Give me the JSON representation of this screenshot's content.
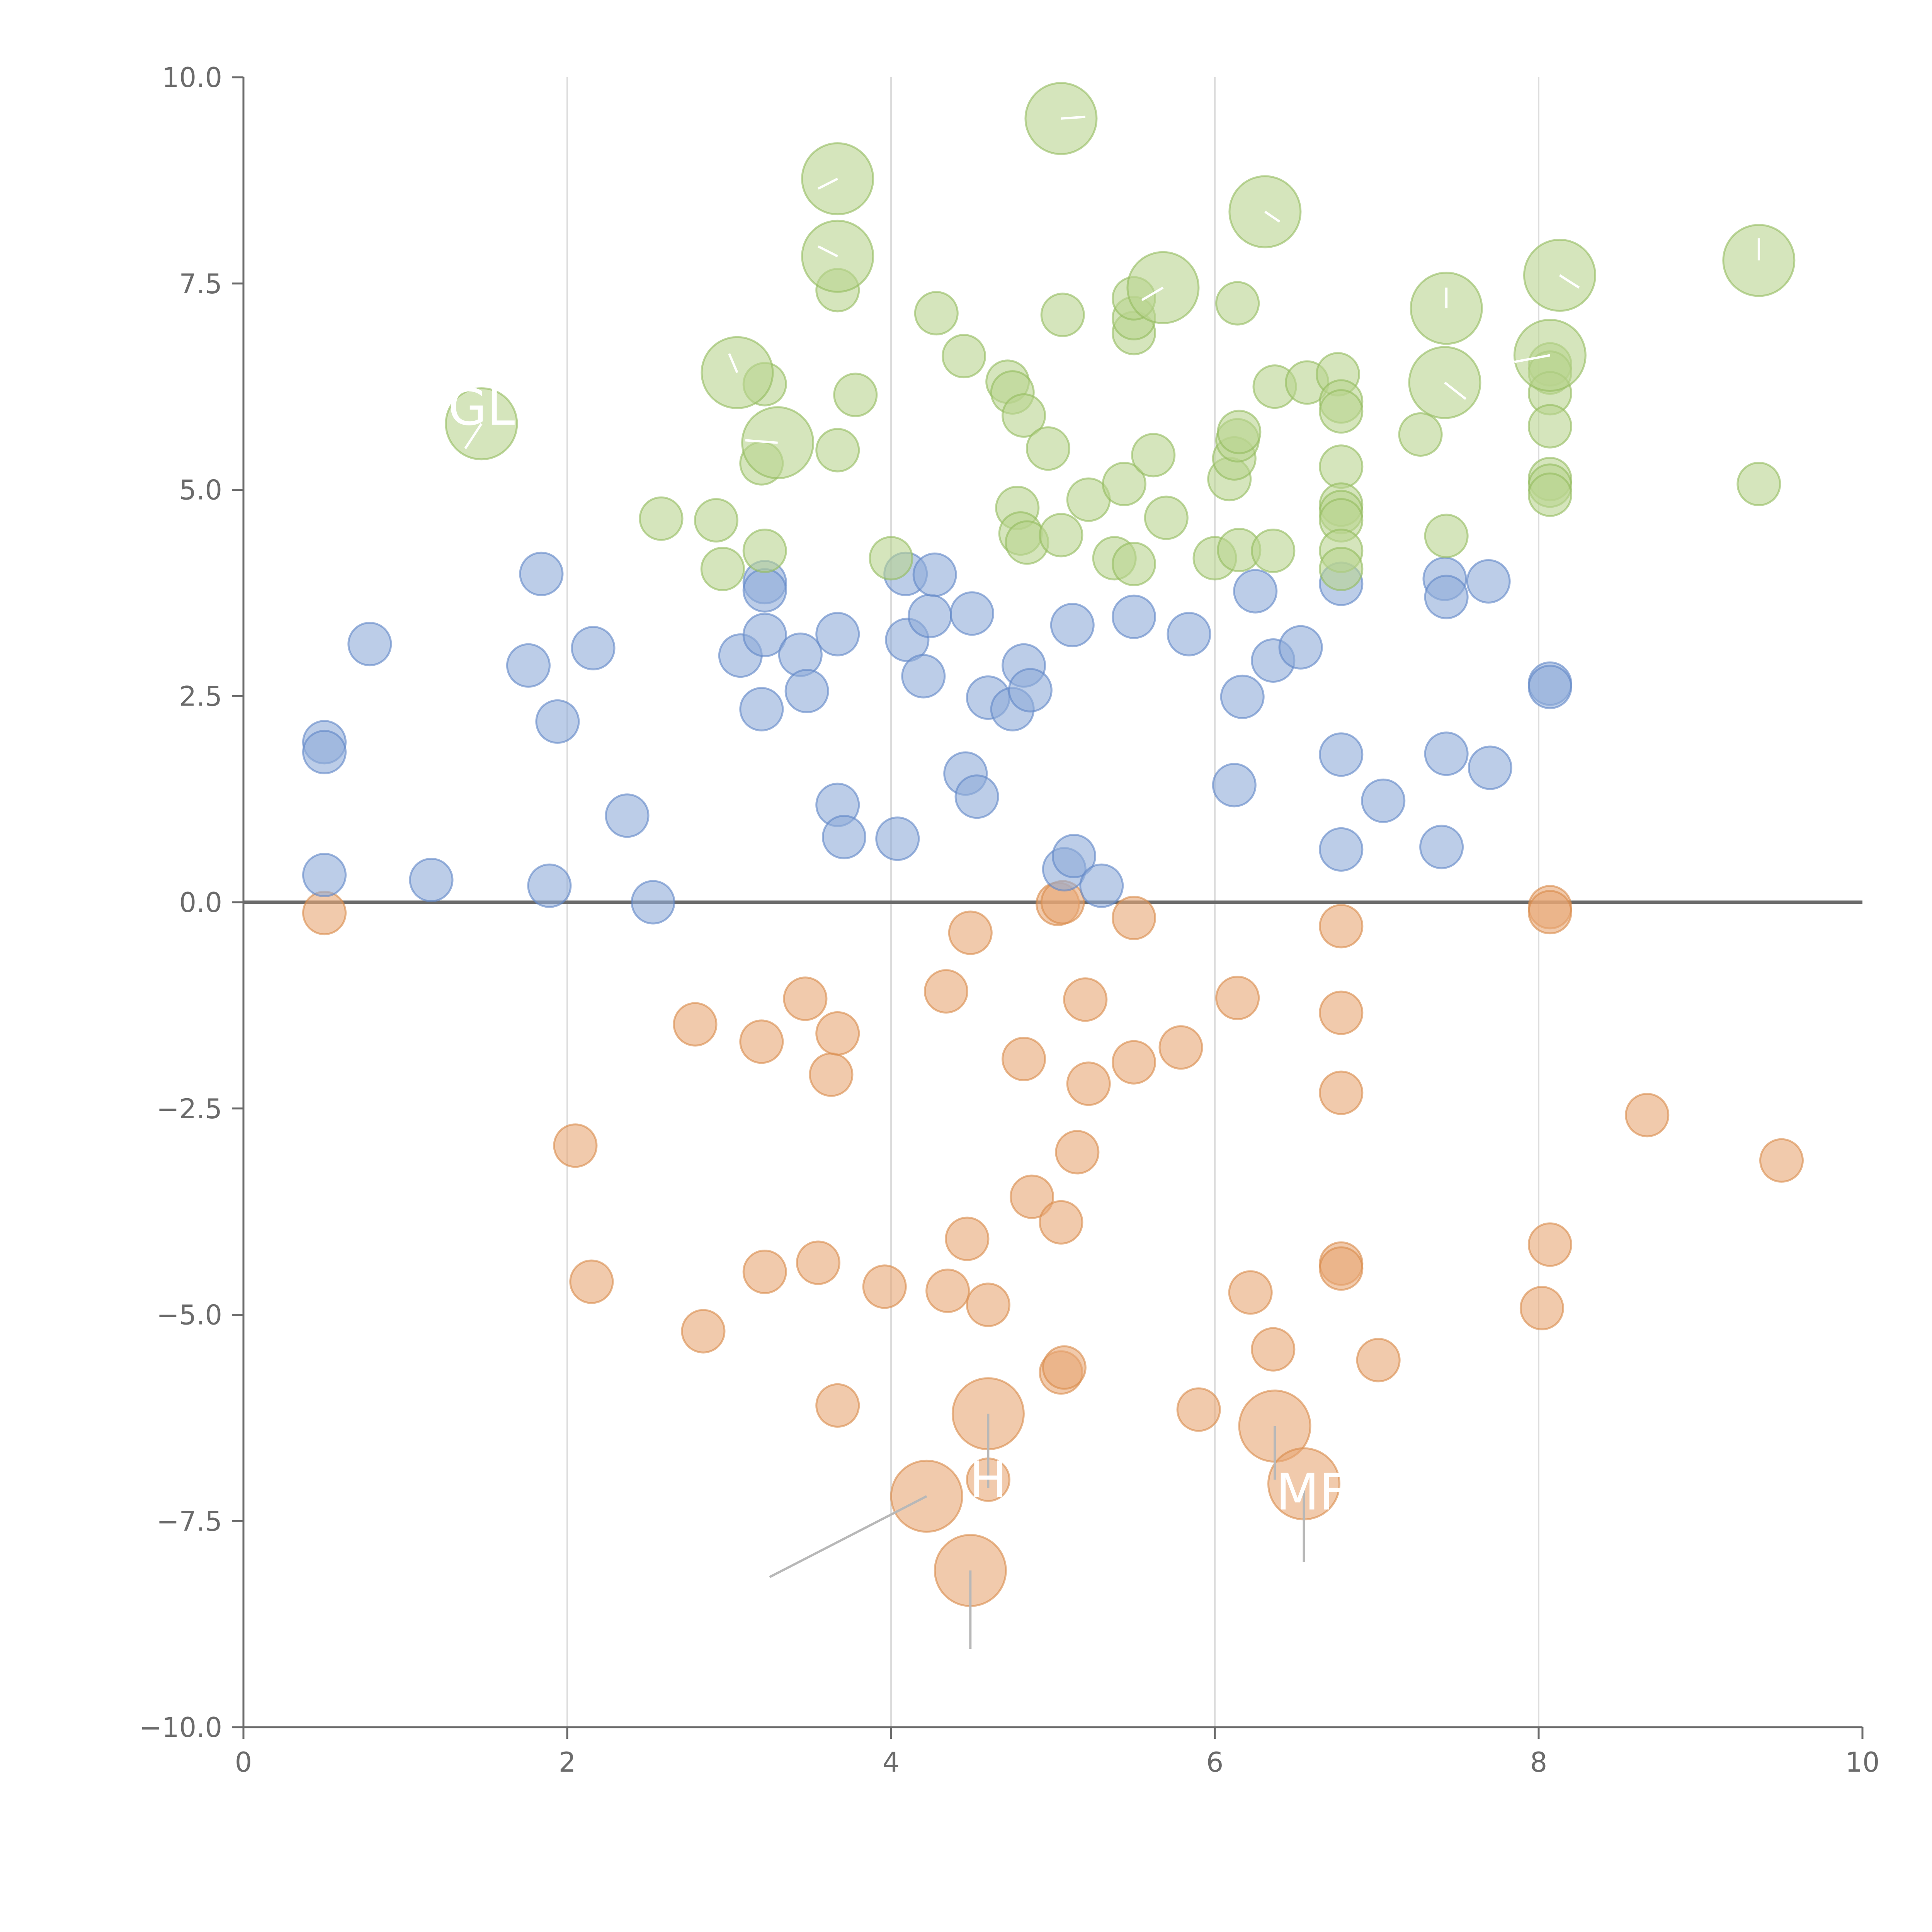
{
  "chart_data": {
    "type": "scatter",
    "title": "",
    "xlabel": "",
    "ylabel": "",
    "xlim": [
      0,
      10
    ],
    "ylim": [
      -10,
      10
    ],
    "x_ticks": [
      "0",
      "2",
      "4",
      "6",
      "8",
      "10"
    ],
    "y_ticks": [
      "−10.0",
      "−7.5",
      "−5.0",
      "−2.5",
      "0.0",
      "2.5",
      "5.0",
      "7.5",
      "10.0"
    ],
    "grid": "vertical",
    "zero_line": true,
    "colors": {
      "low": "#e8a775",
      "mid": "#8fabd8",
      "high": "#b9d48f"
    },
    "series": [
      {
        "color": "low",
        "points": [
          [
            0.5,
            -0.13
          ],
          [
            2.05,
            -2.95
          ],
          [
            2.15,
            -4.6
          ],
          [
            2.79,
            -1.48
          ],
          [
            2.84,
            -5.2
          ],
          [
            3.2,
            -1.69
          ],
          [
            3.22,
            -4.48
          ],
          [
            3.47,
            -1.17
          ],
          [
            3.55,
            -4.37
          ],
          [
            3.63,
            -2.09
          ],
          [
            3.67,
            -1.59
          ],
          [
            3.67,
            -6.1
          ],
          [
            3.96,
            -4.66
          ],
          [
            4.34,
            -1.08
          ],
          [
            4.35,
            -4.71
          ],
          [
            4.47,
            -4.08
          ],
          [
            4.49,
            -0.37
          ],
          [
            4.6,
            -4.88
          ],
          [
            4.6,
            -7.0
          ],
          [
            4.82,
            -1.9
          ],
          [
            4.87,
            -3.57
          ],
          [
            5.03,
            -0.02
          ],
          [
            5.06,
            0.0
          ],
          [
            5.05,
            -3.88
          ],
          [
            5.05,
            -5.7
          ],
          [
            5.07,
            -5.64
          ],
          [
            5.15,
            -3.03
          ],
          [
            5.2,
            -1.18
          ],
          [
            5.22,
            -2.2
          ],
          [
            5.5,
            -0.19
          ],
          [
            5.5,
            -1.94
          ],
          [
            5.79,
            -1.76
          ],
          [
            5.9,
            -6.15
          ],
          [
            6.14,
            -1.16
          ],
          [
            6.22,
            -4.73
          ],
          [
            6.36,
            -5.42
          ],
          [
            6.78,
            -0.29
          ],
          [
            6.78,
            -1.34
          ],
          [
            6.78,
            -2.31
          ],
          [
            6.78,
            -4.38
          ],
          [
            6.78,
            -4.44
          ],
          [
            7.01,
            -5.55
          ],
          [
            8.02,
            -4.92
          ],
          [
            8.07,
            -0.06
          ],
          [
            8.07,
            -0.12
          ],
          [
            8.07,
            -4.15
          ],
          [
            8.67,
            -2.58
          ],
          [
            9.5,
            -3.13
          ]
        ],
        "large_points": [
          [
            4.22,
            -7.2
          ],
          [
            4.6,
            -6.2
          ],
          [
            4.49,
            -8.1
          ],
          [
            6.37,
            -6.35
          ],
          [
            6.55,
            -7.05
          ]
        ]
      },
      {
        "color": "mid",
        "points": [
          [
            0.5,
            1.94
          ],
          [
            0.5,
            1.82
          ],
          [
            0.5,
            0.33
          ],
          [
            0.78,
            3.13
          ],
          [
            1.16,
            0.27
          ],
          [
            1.76,
            2.87
          ],
          [
            1.84,
            3.98
          ],
          [
            1.89,
            0.2
          ],
          [
            1.94,
            2.19
          ],
          [
            2.16,
            3.08
          ],
          [
            2.37,
            1.05
          ],
          [
            2.53,
            0.0
          ],
          [
            3.07,
            2.99
          ],
          [
            3.2,
            2.34
          ],
          [
            3.22,
            3.88
          ],
          [
            3.22,
            3.78
          ],
          [
            3.22,
            3.24
          ],
          [
            3.44,
            3.0
          ],
          [
            3.48,
            2.56
          ],
          [
            3.67,
            1.18
          ],
          [
            3.67,
            3.25
          ],
          [
            3.71,
            0.79
          ],
          [
            4.04,
            0.77
          ],
          [
            4.09,
            3.98
          ],
          [
            4.1,
            3.18
          ],
          [
            4.2,
            2.74
          ],
          [
            4.24,
            3.47
          ],
          [
            4.27,
            3.97
          ],
          [
            4.46,
            1.56
          ],
          [
            4.5,
            3.5
          ],
          [
            4.53,
            1.28
          ],
          [
            4.6,
            2.48
          ],
          [
            4.75,
            2.34
          ],
          [
            4.82,
            2.87
          ],
          [
            4.86,
            2.57
          ],
          [
            5.07,
            0.4
          ],
          [
            5.12,
            3.36
          ],
          [
            5.13,
            0.56
          ],
          [
            5.3,
            0.2
          ],
          [
            5.5,
            3.46
          ],
          [
            5.84,
            3.25
          ],
          [
            6.12,
            1.42
          ],
          [
            6.17,
            2.49
          ],
          [
            6.25,
            3.77
          ],
          [
            6.36,
            2.93
          ],
          [
            6.53,
            3.09
          ],
          [
            6.78,
            1.79
          ],
          [
            6.78,
            0.64
          ],
          [
            6.78,
            3.86
          ],
          [
            7.04,
            1.23
          ],
          [
            7.4,
            0.67
          ],
          [
            7.42,
            3.92
          ],
          [
            7.43,
            3.7
          ],
          [
            7.43,
            1.8
          ],
          [
            7.69,
            3.89
          ],
          [
            7.7,
            1.63
          ],
          [
            8.07,
            2.65
          ],
          [
            8.07,
            2.61
          ]
        ]
      },
      {
        "color": "high",
        "points": [
          [
            2.58,
            4.65
          ],
          [
            2.92,
            4.63
          ],
          [
            2.96,
            4.04
          ],
          [
            3.22,
            6.28
          ],
          [
            3.2,
            5.32
          ],
          [
            3.22,
            4.26
          ],
          [
            3.67,
            5.48
          ],
          [
            3.67,
            7.42
          ],
          [
            3.78,
            6.15
          ],
          [
            4.0,
            4.17
          ],
          [
            4.28,
            7.14
          ],
          [
            4.45,
            6.62
          ],
          [
            4.72,
            6.31
          ],
          [
            4.75,
            6.18
          ],
          [
            4.78,
            4.78
          ],
          [
            4.8,
            4.47
          ],
          [
            4.82,
            5.9
          ],
          [
            4.84,
            4.36
          ],
          [
            4.97,
            5.5
          ],
          [
            5.05,
            4.45
          ],
          [
            5.06,
            7.12
          ],
          [
            5.22,
            4.88
          ],
          [
            5.38,
            4.17
          ],
          [
            5.44,
            5.07
          ],
          [
            5.5,
            6.9
          ],
          [
            5.5,
            7.08
          ],
          [
            5.5,
            7.32
          ],
          [
            5.5,
            4.1
          ],
          [
            5.62,
            5.42
          ],
          [
            5.7,
            4.66
          ],
          [
            6.0,
            4.17
          ],
          [
            6.09,
            5.13
          ],
          [
            6.12,
            5.38
          ],
          [
            6.14,
            5.6
          ],
          [
            6.15,
            5.7
          ],
          [
            6.14,
            7.26
          ],
          [
            6.15,
            4.27
          ],
          [
            6.37,
            6.25
          ],
          [
            6.36,
            4.26
          ],
          [
            6.57,
            6.3
          ],
          [
            6.76,
            6.4
          ],
          [
            6.78,
            6.07
          ],
          [
            6.78,
            5.95
          ],
          [
            6.78,
            5.28
          ],
          [
            6.78,
            4.82
          ],
          [
            6.78,
            4.73
          ],
          [
            6.78,
            4.63
          ],
          [
            6.78,
            4.26
          ],
          [
            6.78,
            4.04
          ],
          [
            7.27,
            5.67
          ],
          [
            7.43,
            4.44
          ],
          [
            8.07,
            6.52
          ],
          [
            8.07,
            6.42
          ],
          [
            8.07,
            6.17
          ],
          [
            8.07,
            5.77
          ],
          [
            8.07,
            5.13
          ],
          [
            8.07,
            5.05
          ],
          [
            8.07,
            4.94
          ],
          [
            9.36,
            5.07
          ]
        ],
        "large_points": [
          [
            1.47,
            5.8
          ],
          [
            3.05,
            6.42
          ],
          [
            3.3,
            5.57
          ],
          [
            3.67,
            8.77
          ],
          [
            3.67,
            7.83
          ],
          [
            5.05,
            9.5
          ],
          [
            5.68,
            7.45
          ],
          [
            6.31,
            8.37
          ],
          [
            7.42,
            6.3
          ],
          [
            7.43,
            7.2
          ],
          [
            8.07,
            6.63
          ],
          [
            8.13,
            7.6
          ],
          [
            9.36,
            7.78
          ]
        ]
      }
    ],
    "annotations": [
      {
        "text": "GL",
        "x": 1.47,
        "y": 5.8,
        "lx": 1.47,
        "ly": 6.0
      },
      {
        "text": "MF",
        "x": 6.55,
        "y": -7.05,
        "lx": 6.6,
        "ly": -7.15
      },
      {
        "text": "H",
        "x": 4.6,
        "y": -7.0,
        "lx": 4.6,
        "ly": -7.0
      }
    ],
    "leader_lines": [
      [
        [
          4.22,
          -7.2
        ],
        [
          3.25,
          -8.18
        ]
      ],
      [
        [
          4.49,
          -8.1
        ],
        [
          4.49,
          -9.05
        ]
      ],
      [
        [
          4.6,
          -6.2
        ],
        [
          4.6,
          -7.1
        ]
      ],
      [
        [
          6.37,
          -6.35
        ],
        [
          6.37,
          -7.0
        ]
      ],
      [
        [
          6.55,
          -7.05
        ],
        [
          6.55,
          -8.0
        ]
      ],
      [
        [
          1.47,
          5.8
        ],
        [
          1.37,
          5.5
        ]
      ],
      [
        [
          3.05,
          6.42
        ],
        [
          3.0,
          6.65
        ]
      ],
      [
        [
          3.3,
          5.57
        ],
        [
          3.1,
          5.6
        ]
      ],
      [
        [
          3.67,
          8.77
        ],
        [
          3.55,
          8.65
        ]
      ],
      [
        [
          3.67,
          7.83
        ],
        [
          3.55,
          7.95
        ]
      ],
      [
        [
          5.05,
          9.5
        ],
        [
          5.2,
          9.52
        ]
      ],
      [
        [
          5.68,
          7.45
        ],
        [
          5.55,
          7.3
        ]
      ],
      [
        [
          6.31,
          8.37
        ],
        [
          6.4,
          8.25
        ]
      ],
      [
        [
          7.42,
          6.3
        ],
        [
          7.55,
          6.1
        ]
      ],
      [
        [
          7.43,
          7.2
        ],
        [
          7.43,
          7.45
        ]
      ],
      [
        [
          8.07,
          6.63
        ],
        [
          7.85,
          6.55
        ]
      ],
      [
        [
          8.13,
          7.6
        ],
        [
          8.25,
          7.45
        ]
      ],
      [
        [
          9.36,
          7.78
        ],
        [
          9.36,
          8.05
        ]
      ]
    ]
  }
}
